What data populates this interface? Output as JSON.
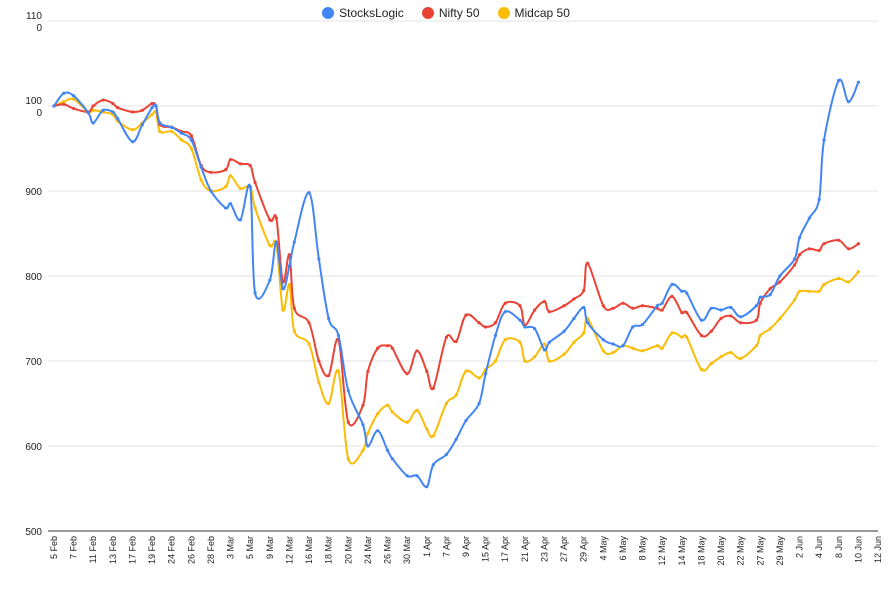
{
  "chart_data": {
    "type": "line",
    "title": "",
    "xlabel": "",
    "ylabel": "",
    "ylim": [
      500,
      1100
    ],
    "y_ticks": [
      500,
      600,
      700,
      800,
      900,
      1000,
      1100
    ],
    "y_tick_labels": [
      "500",
      "600",
      "700",
      "800",
      "900",
      "100\n0",
      "110\n0"
    ],
    "grid": true,
    "legend_position": "top",
    "x_start": "2020-02-05",
    "x_ticks": [
      "5 Feb",
      "7 Feb",
      "11 Feb",
      "13 Feb",
      "17 Feb",
      "19 Feb",
      "24 Feb",
      "26 Feb",
      "28 Feb",
      "3 Mar",
      "5 Mar",
      "9 Mar",
      "12 Mar",
      "16 Mar",
      "18 Mar",
      "20 Mar",
      "24 Mar",
      "26 Mar",
      "30 Mar",
      "1 Apr",
      "7 Apr",
      "9 Apr",
      "15 Apr",
      "17 Apr",
      "21 Apr",
      "23 Apr",
      "27 Apr",
      "29 Apr",
      "4 May",
      "6 May",
      "8 May",
      "12 May",
      "14 May",
      "18 May",
      "20 May",
      "22 May",
      "27 May",
      "29 May",
      "2 Jun",
      "4 Jun",
      "8 Jun",
      "10 Jun",
      "12 Jun"
    ],
    "series": [
      {
        "name": "StocksLogic",
        "color": "#4285F4",
        "values": [
          [
            "2020-02-05",
            1000
          ],
          [
            "2020-02-06",
            1015
          ],
          [
            "2020-02-07",
            1012
          ],
          [
            "2020-02-10",
            992
          ],
          [
            "2020-02-11",
            980
          ],
          [
            "2020-02-12",
            995
          ],
          [
            "2020-02-13",
            993
          ],
          [
            "2020-02-14",
            985
          ],
          [
            "2020-02-17",
            958
          ],
          [
            "2020-02-18",
            978
          ],
          [
            "2020-02-19",
            998
          ],
          [
            "2020-02-20",
            1000
          ],
          [
            "2020-02-21",
            980
          ],
          [
            "2020-02-24",
            975
          ],
          [
            "2020-02-25",
            968
          ],
          [
            "2020-02-26",
            960
          ],
          [
            "2020-02-27",
            928
          ],
          [
            "2020-02-28",
            900
          ],
          [
            "2020-03-02",
            880
          ],
          [
            "2020-03-03",
            885
          ],
          [
            "2020-03-04",
            866
          ],
          [
            "2020-03-05",
            905
          ],
          [
            "2020-03-06",
            780
          ],
          [
            "2020-03-09",
            795
          ],
          [
            "2020-03-10",
            840
          ],
          [
            "2020-03-11",
            785
          ],
          [
            "2020-03-12",
            812
          ],
          [
            "2020-03-13",
            840
          ],
          [
            "2020-03-16",
            898
          ],
          [
            "2020-03-17",
            820
          ],
          [
            "2020-03-18",
            750
          ],
          [
            "2020-03-19",
            730
          ],
          [
            "2020-03-20",
            665
          ],
          [
            "2020-03-23",
            625
          ],
          [
            "2020-03-24",
            600
          ],
          [
            "2020-03-25",
            618
          ],
          [
            "2020-03-26",
            595
          ],
          [
            "2020-03-27",
            585
          ],
          [
            "2020-03-30",
            565
          ],
          [
            "2020-03-31",
            565
          ],
          [
            "2020-04-01",
            552
          ],
          [
            "2020-04-03",
            578
          ],
          [
            "2020-04-07",
            590
          ],
          [
            "2020-04-08",
            608
          ],
          [
            "2020-04-09",
            630
          ],
          [
            "2020-04-13",
            650
          ],
          [
            "2020-04-15",
            685
          ],
          [
            "2020-04-16",
            730
          ],
          [
            "2020-04-17",
            758
          ],
          [
            "2020-04-20",
            748
          ],
          [
            "2020-04-21",
            740
          ],
          [
            "2020-04-22",
            738
          ],
          [
            "2020-04-23",
            713
          ],
          [
            "2020-04-24",
            722
          ],
          [
            "2020-04-27",
            735
          ],
          [
            "2020-04-28",
            750
          ],
          [
            "2020-04-29",
            763
          ],
          [
            "2020-04-30",
            745
          ],
          [
            "2020-05-04",
            725
          ],
          [
            "2020-05-05",
            720
          ],
          [
            "2020-05-06",
            718
          ],
          [
            "2020-05-07",
            740
          ],
          [
            "2020-05-08",
            743
          ],
          [
            "2020-05-11",
            765
          ],
          [
            "2020-05-12",
            768
          ],
          [
            "2020-05-13",
            790
          ],
          [
            "2020-05-14",
            782
          ],
          [
            "2020-05-15",
            780
          ],
          [
            "2020-05-18",
            748
          ],
          [
            "2020-05-19",
            762
          ],
          [
            "2020-05-20",
            760
          ],
          [
            "2020-05-21",
            763
          ],
          [
            "2020-05-22",
            752
          ],
          [
            "2020-05-26",
            765
          ],
          [
            "2020-05-27",
            775
          ],
          [
            "2020-05-28",
            778
          ],
          [
            "2020-05-29",
            800
          ],
          [
            "2020-06-01",
            820
          ],
          [
            "2020-06-02",
            845
          ],
          [
            "2020-06-03",
            868
          ],
          [
            "2020-06-04",
            890
          ],
          [
            "2020-06-05",
            960
          ],
          [
            "2020-06-08",
            1030
          ],
          [
            "2020-06-09",
            1005
          ],
          [
            "2020-06-10",
            1028
          ]
        ]
      },
      {
        "name": "Nifty 50",
        "color": "#EA4335",
        "values": [
          [
            "2020-02-05",
            1000
          ],
          [
            "2020-02-06",
            1002
          ],
          [
            "2020-02-07",
            997
          ],
          [
            "2020-02-10",
            993
          ],
          [
            "2020-02-11",
            1000
          ],
          [
            "2020-02-12",
            1007
          ],
          [
            "2020-02-13",
            1003
          ],
          [
            "2020-02-14",
            998
          ],
          [
            "2020-02-17",
            993
          ],
          [
            "2020-02-18",
            995
          ],
          [
            "2020-02-19",
            1003
          ],
          [
            "2020-02-20",
            1000
          ],
          [
            "2020-02-21",
            978
          ],
          [
            "2020-02-24",
            975
          ],
          [
            "2020-02-25",
            970
          ],
          [
            "2020-02-26",
            965
          ],
          [
            "2020-02-27",
            930
          ],
          [
            "2020-02-28",
            922
          ],
          [
            "2020-03-02",
            925
          ],
          [
            "2020-03-03",
            937
          ],
          [
            "2020-03-04",
            932
          ],
          [
            "2020-03-05",
            930
          ],
          [
            "2020-03-06",
            910
          ],
          [
            "2020-03-09",
            866
          ],
          [
            "2020-03-10",
            868
          ],
          [
            "2020-03-11",
            793
          ],
          [
            "2020-03-12",
            825
          ],
          [
            "2020-03-13",
            762
          ],
          [
            "2020-03-16",
            745
          ],
          [
            "2020-03-17",
            700
          ],
          [
            "2020-03-18",
            683
          ],
          [
            "2020-03-19",
            725
          ],
          [
            "2020-03-20",
            628
          ],
          [
            "2020-03-23",
            648
          ],
          [
            "2020-03-24",
            688
          ],
          [
            "2020-03-25",
            715
          ],
          [
            "2020-03-26",
            718
          ],
          [
            "2020-03-27",
            715
          ],
          [
            "2020-03-30",
            685
          ],
          [
            "2020-03-31",
            712
          ],
          [
            "2020-04-01",
            688
          ],
          [
            "2020-04-03",
            668
          ],
          [
            "2020-04-07",
            728
          ],
          [
            "2020-04-08",
            723
          ],
          [
            "2020-04-09",
            754
          ],
          [
            "2020-04-13",
            745
          ],
          [
            "2020-04-15",
            740
          ],
          [
            "2020-04-16",
            745
          ],
          [
            "2020-04-17",
            768
          ],
          [
            "2020-04-20",
            765
          ],
          [
            "2020-04-21",
            742
          ],
          [
            "2020-04-22",
            760
          ],
          [
            "2020-04-23",
            770
          ],
          [
            "2020-04-24",
            758
          ],
          [
            "2020-04-27",
            765
          ],
          [
            "2020-04-28",
            773
          ],
          [
            "2020-04-29",
            783
          ],
          [
            "2020-04-30",
            815
          ],
          [
            "2020-05-04",
            765
          ],
          [
            "2020-05-05",
            762
          ],
          [
            "2020-05-06",
            768
          ],
          [
            "2020-05-07",
            762
          ],
          [
            "2020-05-08",
            765
          ],
          [
            "2020-05-11",
            762
          ],
          [
            "2020-05-12",
            760
          ],
          [
            "2020-05-13",
            776
          ],
          [
            "2020-05-14",
            757
          ],
          [
            "2020-05-15",
            757
          ],
          [
            "2020-05-18",
            730
          ],
          [
            "2020-05-19",
            735
          ],
          [
            "2020-05-20",
            750
          ],
          [
            "2020-05-21",
            753
          ],
          [
            "2020-05-22",
            745
          ],
          [
            "2020-05-26",
            748
          ],
          [
            "2020-05-27",
            768
          ],
          [
            "2020-05-28",
            785
          ],
          [
            "2020-05-29",
            793
          ],
          [
            "2020-06-01",
            813
          ],
          [
            "2020-06-02",
            825
          ],
          [
            "2020-06-03",
            832
          ],
          [
            "2020-06-04",
            830
          ],
          [
            "2020-06-05",
            838
          ],
          [
            "2020-06-08",
            842
          ],
          [
            "2020-06-09",
            832
          ],
          [
            "2020-06-10",
            838
          ]
        ]
      },
      {
        "name": "Midcap 50",
        "color": "#FBBC04",
        "values": [
          [
            "2020-02-05",
            1000
          ],
          [
            "2020-02-06",
            1005
          ],
          [
            "2020-02-07",
            1008
          ],
          [
            "2020-02-10",
            993
          ],
          [
            "2020-02-11",
            995
          ],
          [
            "2020-02-12",
            993
          ],
          [
            "2020-02-13",
            990
          ],
          [
            "2020-02-14",
            982
          ],
          [
            "2020-02-17",
            972
          ],
          [
            "2020-02-18",
            980
          ],
          [
            "2020-02-19",
            990
          ],
          [
            "2020-02-20",
            993
          ],
          [
            "2020-02-21",
            970
          ],
          [
            "2020-02-24",
            970
          ],
          [
            "2020-02-25",
            960
          ],
          [
            "2020-02-26",
            950
          ],
          [
            "2020-02-27",
            913
          ],
          [
            "2020-02-28",
            900
          ],
          [
            "2020-03-02",
            905
          ],
          [
            "2020-03-03",
            918
          ],
          [
            "2020-03-04",
            903
          ],
          [
            "2020-03-05",
            905
          ],
          [
            "2020-03-06",
            880
          ],
          [
            "2020-03-09",
            836
          ],
          [
            "2020-03-10",
            838
          ],
          [
            "2020-03-11",
            760
          ],
          [
            "2020-03-12",
            790
          ],
          [
            "2020-03-13",
            735
          ],
          [
            "2020-03-16",
            720
          ],
          [
            "2020-03-17",
            675
          ],
          [
            "2020-03-18",
            650
          ],
          [
            "2020-03-19",
            688
          ],
          [
            "2020-03-20",
            585
          ],
          [
            "2020-03-23",
            595
          ],
          [
            "2020-03-24",
            615
          ],
          [
            "2020-03-25",
            638
          ],
          [
            "2020-03-26",
            648
          ],
          [
            "2020-03-27",
            640
          ],
          [
            "2020-03-30",
            628
          ],
          [
            "2020-03-31",
            642
          ],
          [
            "2020-04-01",
            620
          ],
          [
            "2020-04-03",
            612
          ],
          [
            "2020-04-07",
            650
          ],
          [
            "2020-04-08",
            660
          ],
          [
            "2020-04-09",
            688
          ],
          [
            "2020-04-13",
            680
          ],
          [
            "2020-04-15",
            690
          ],
          [
            "2020-04-16",
            700
          ],
          [
            "2020-04-17",
            725
          ],
          [
            "2020-04-20",
            722
          ],
          [
            "2020-04-21",
            700
          ],
          [
            "2020-04-22",
            705
          ],
          [
            "2020-04-23",
            720
          ],
          [
            "2020-04-24",
            700
          ],
          [
            "2020-04-27",
            708
          ],
          [
            "2020-04-28",
            722
          ],
          [
            "2020-04-29",
            733
          ],
          [
            "2020-04-30",
            750
          ],
          [
            "2020-05-04",
            712
          ],
          [
            "2020-05-05",
            710
          ],
          [
            "2020-05-06",
            718
          ],
          [
            "2020-05-07",
            715
          ],
          [
            "2020-05-08",
            712
          ],
          [
            "2020-05-11",
            718
          ],
          [
            "2020-05-12",
            715
          ],
          [
            "2020-05-13",
            733
          ],
          [
            "2020-05-14",
            728
          ],
          [
            "2020-05-15",
            728
          ],
          [
            "2020-05-18",
            690
          ],
          [
            "2020-05-19",
            697
          ],
          [
            "2020-05-20",
            705
          ],
          [
            "2020-05-21",
            710
          ],
          [
            "2020-05-22",
            703
          ],
          [
            "2020-05-26",
            718
          ],
          [
            "2020-05-27",
            730
          ],
          [
            "2020-05-28",
            738
          ],
          [
            "2020-05-29",
            750
          ],
          [
            "2020-06-01",
            772
          ],
          [
            "2020-06-02",
            782
          ],
          [
            "2020-06-03",
            782
          ],
          [
            "2020-06-04",
            782
          ],
          [
            "2020-06-05",
            790
          ],
          [
            "2020-06-08",
            797
          ],
          [
            "2020-06-09",
            793
          ],
          [
            "2020-06-10",
            805
          ]
        ]
      }
    ]
  }
}
